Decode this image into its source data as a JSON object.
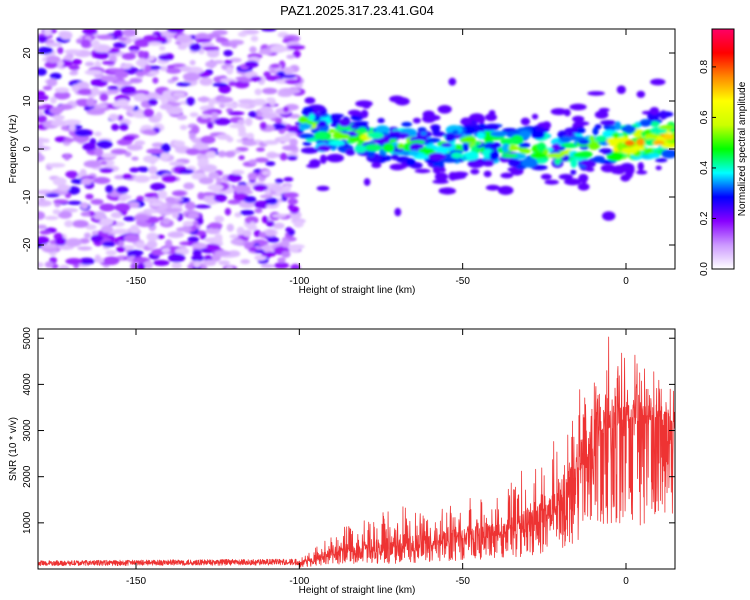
{
  "title": "PAZ1.2025.317.23.41.G04",
  "chart_data": [
    {
      "type": "heatmap",
      "xlabel": "Height of straight line (km)",
      "ylabel": "Frequency (Hz)",
      "xlim": [
        -180,
        15
      ],
      "ylim": [
        -25,
        25
      ],
      "x_ticks": [
        -150,
        -100,
        -50,
        0
      ],
      "y_ticks": [
        -20,
        -10,
        0,
        10,
        20
      ],
      "colorbar": {
        "label": "Normalized spectral amplitude",
        "range": [
          0,
          0.95
        ],
        "ticks": [
          0.0,
          0.2,
          0.4,
          0.6,
          0.8
        ],
        "colors": [
          "#ffffff",
          "#cc99ff",
          "#8800ff",
          "#0000ff",
          "#00ffff",
          "#00ff00",
          "#ccff00",
          "#ffff00",
          "#ff8800",
          "#ff0000",
          "#ff0066"
        ]
      },
      "regions": [
        {
          "name": "noise",
          "x_range": [
            -180,
            -100
          ],
          "freq_range": [
            -25,
            25
          ],
          "amplitude": [
            0.05,
            0.25
          ]
        },
        {
          "name": "signal",
          "x_range": [
            -100,
            15
          ],
          "freq_center": [
            [
              -100,
              5
            ],
            [
              -90,
              3
            ],
            [
              -75,
              2
            ],
            [
              -60,
              0.5
            ],
            [
              -40,
              1
            ],
            [
              -25,
              0
            ],
            [
              -20,
              -1.5
            ],
            [
              -10,
              1
            ],
            [
              0,
              1
            ],
            [
              15,
              3
            ]
          ],
          "amplitude": [
            0.1,
            0.9
          ]
        }
      ]
    },
    {
      "type": "line",
      "xlabel": "Height of straight line (km)",
      "ylabel": "SNR (10 * v/v)",
      "xlim": [
        -180,
        15
      ],
      "ylim": [
        0,
        5200
      ],
      "x_ticks": [
        -150,
        -100,
        -50,
        0
      ],
      "y_ticks": [
        1000,
        2000,
        3000,
        4000,
        5000
      ],
      "color": "#ee3333",
      "series_envelope": {
        "x": [
          -180,
          -100,
          -90,
          -70,
          -60,
          -50,
          -40,
          -30,
          -20,
          -15,
          -10,
          -5,
          0,
          5,
          10,
          15
        ],
        "baseline": [
          100,
          120,
          300,
          400,
          500,
          600,
          700,
          900,
          1200,
          2000,
          2600,
          3000,
          3200,
          3100,
          3300,
          3000
        ],
        "peak": [
          180,
          220,
          800,
          1400,
          1200,
          1500,
          1700,
          2300,
          3200,
          4200,
          4600,
          5200,
          4800,
          4500,
          4200,
          4000
        ]
      }
    }
  ]
}
